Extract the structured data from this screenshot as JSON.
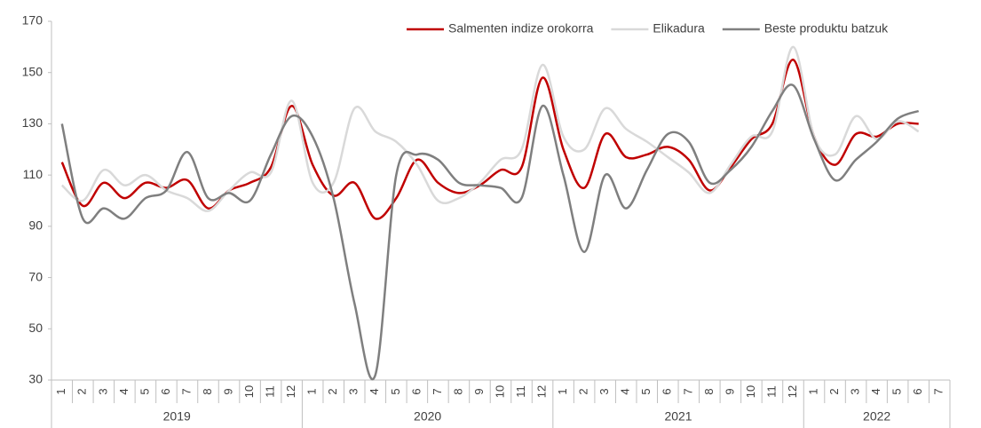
{
  "chart_data": {
    "type": "line",
    "categories": [
      "1",
      "2",
      "3",
      "4",
      "5",
      "6",
      "7",
      "8",
      "9",
      "10",
      "11",
      "12",
      "1",
      "2",
      "3",
      "4",
      "5",
      "6",
      "7",
      "8",
      "9",
      "10",
      "11",
      "12",
      "1",
      "2",
      "3",
      "4",
      "5",
      "6",
      "7",
      "8",
      "9",
      "10",
      "11",
      "12",
      "1",
      "2",
      "3",
      "4",
      "5",
      "6",
      "7"
    ],
    "x_groups": [
      "2019",
      "2020",
      "2021",
      "2022"
    ],
    "series": [
      {
        "name": "Salmenten indize orokorra",
        "color": "#c00000",
        "values": [
          115,
          98,
          107,
          101,
          107,
          105,
          108,
          97,
          104,
          107,
          113,
          137,
          114,
          102,
          107,
          93,
          101,
          116,
          107,
          103,
          106,
          112,
          113,
          148,
          120,
          105,
          126,
          117,
          118,
          121,
          116,
          104,
          113,
          124,
          130,
          155,
          125,
          114,
          126,
          125,
          130,
          130,
          null
        ]
      },
      {
        "name": "Elikadura",
        "color": "#d9d9d9",
        "values": [
          106,
          100,
          112,
          106,
          110,
          104,
          101,
          96,
          104,
          111,
          111,
          139,
          107,
          107,
          136,
          127,
          123,
          114,
          100,
          101,
          107,
          116,
          120,
          153,
          125,
          120,
          136,
          128,
          123,
          117,
          111,
          103,
          114,
          125,
          127,
          160,
          125,
          118,
          133,
          124,
          131,
          127,
          null
        ]
      },
      {
        "name": "Beste produktu batzuk",
        "color": "#7f7f7f",
        "values": [
          130,
          93,
          97,
          93,
          101,
          104,
          119,
          101,
          103,
          100,
          118,
          133,
          125,
          101,
          60,
          32,
          110,
          118,
          116,
          107,
          106,
          105,
          101,
          137,
          110,
          80,
          110,
          97,
          112,
          126,
          123,
          107,
          112,
          121,
          135,
          145,
          124,
          108,
          116,
          123,
          132,
          135,
          null
        ]
      }
    ],
    "ylim": [
      30,
      170
    ],
    "yticks": [
      30,
      50,
      70,
      90,
      110,
      130,
      150,
      170
    ],
    "grid": false,
    "legend": "top-right"
  }
}
